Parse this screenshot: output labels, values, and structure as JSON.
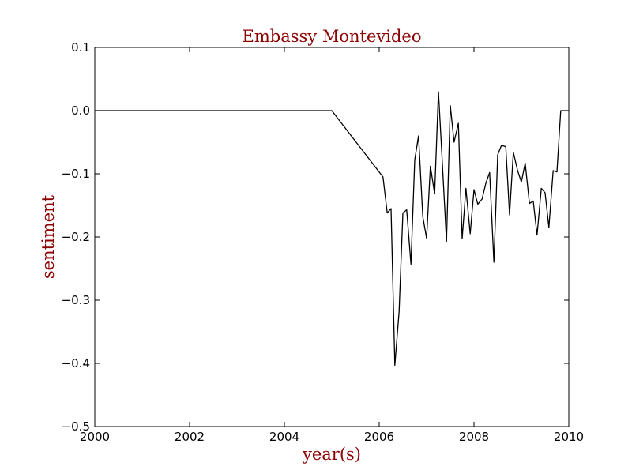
{
  "chart_data": {
    "type": "line",
    "title": "Embassy Montevideo",
    "xlabel": "year(s)",
    "ylabel": "sentiment",
    "xlim": [
      2000,
      2010
    ],
    "ylim": [
      -0.5,
      0.1
    ],
    "x_ticks": [
      2000,
      2002,
      2004,
      2006,
      2008,
      2010
    ],
    "x_tick_labels": [
      "2000",
      "2002",
      "2004",
      "2006",
      "2008",
      "2010"
    ],
    "y_ticks": [
      0.1,
      0.0,
      -0.1,
      -0.2,
      -0.3,
      -0.4,
      -0.5
    ],
    "y_tick_labels": [
      "0.1",
      "0.0",
      "−0.1",
      "−0.2",
      "−0.3",
      "−0.4",
      "−0.5"
    ],
    "grid": false,
    "colors": {
      "text": "#8b0000",
      "line": "#000000"
    },
    "series": [
      {
        "x": [
          2000.0,
          2005.0,
          2006.08,
          2006.17,
          2006.25,
          2006.33,
          2006.42,
          2006.5,
          2006.58,
          2006.67,
          2006.75,
          2006.83,
          2006.92,
          2007.0,
          2007.08,
          2007.17,
          2007.25,
          2007.33,
          2007.42,
          2007.5,
          2007.58,
          2007.67,
          2007.75,
          2007.83,
          2007.92,
          2008.0,
          2008.08,
          2008.17,
          2008.25,
          2008.33,
          2008.42,
          2008.5,
          2008.58,
          2008.67,
          2008.75,
          2008.83,
          2008.92,
          2009.0,
          2009.08,
          2009.17,
          2009.25,
          2009.33,
          2009.42,
          2009.5,
          2009.58,
          2009.67,
          2009.75,
          2009.83,
          2009.92,
          2010.0
        ],
        "y": [
          0.0,
          0.0,
          -0.105,
          -0.162,
          -0.155,
          -0.403,
          -0.318,
          -0.162,
          -0.157,
          -0.243,
          -0.078,
          -0.04,
          -0.168,
          -0.202,
          -0.088,
          -0.132,
          0.03,
          -0.08,
          -0.207,
          0.008,
          -0.05,
          -0.02,
          -0.203,
          -0.123,
          -0.195,
          -0.125,
          -0.148,
          -0.14,
          -0.115,
          -0.098,
          -0.24,
          -0.07,
          -0.055,
          -0.057,
          -0.165,
          -0.066,
          -0.095,
          -0.113,
          -0.083,
          -0.147,
          -0.143,
          -0.197,
          -0.123,
          -0.13,
          -0.185,
          -0.095,
          -0.097,
          0.0,
          0.0,
          0.0
        ]
      }
    ]
  }
}
